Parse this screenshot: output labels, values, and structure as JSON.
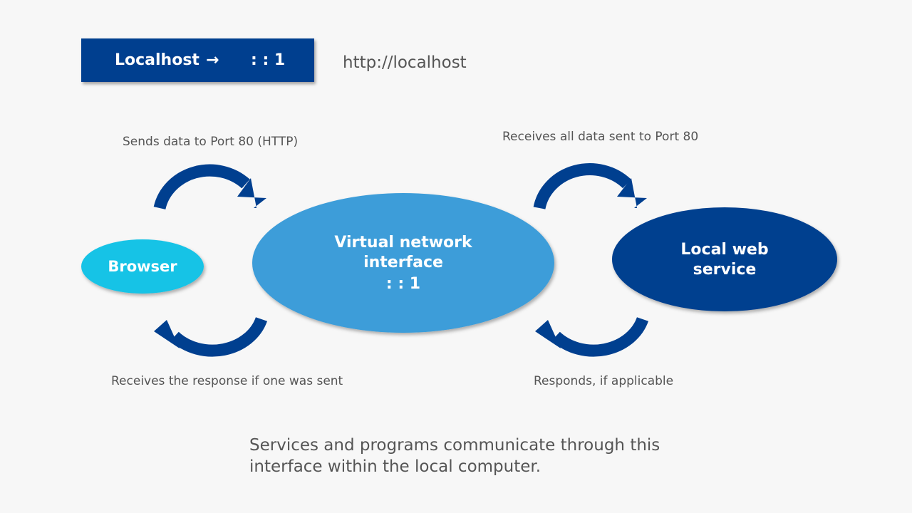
{
  "header": {
    "mapping_name": "Localhost",
    "arrow": "→",
    "mapping_address": ": : 1",
    "url": "http://localhost"
  },
  "nodes": {
    "browser": "Browser",
    "interface_line1": "Virtual network",
    "interface_line2": "interface",
    "interface_line3": ": : 1",
    "service_line1": "Local web",
    "service_line2": "service"
  },
  "captions": {
    "top_left": "Sends data to Port 80 (HTTP)",
    "top_right": "Receives all data sent to Port 80",
    "bottom_left": "Receives the response if one was sent",
    "bottom_right": "Responds, if applicable"
  },
  "footer": {
    "line1": "Services and programs communicate through this",
    "line2": "interface within the local computer."
  },
  "colors": {
    "browser": "#14c3e6",
    "interface": "#3d9dd9",
    "service": "#003f8f",
    "arrows": "#003f8f",
    "background": "#f7f7f7"
  }
}
